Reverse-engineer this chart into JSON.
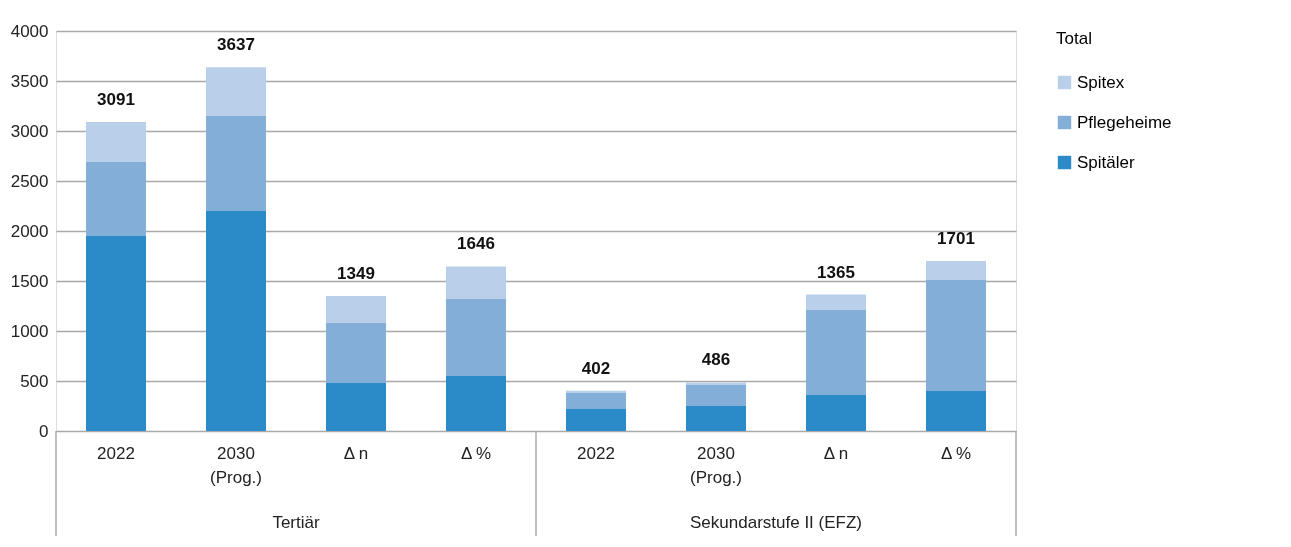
{
  "chart_data": {
    "type": "bar",
    "stacked": true,
    "categories": [
      "2022",
      "2030\n(Prog.)",
      "Δ n",
      "Δ %",
      "2022",
      "2030\n(Prog.)",
      "Δ n",
      "Δ %"
    ],
    "series": [
      {
        "name": "Spitäler",
        "color": "#2b8bc8",
        "values": [
          1950,
          2200,
          480,
          550,
          220,
          250,
          360,
          400
        ]
      },
      {
        "name": "Pflegeheime",
        "color": "#83aed8",
        "values": [
          740,
          950,
          600,
          770,
          160,
          210,
          850,
          1110
        ]
      },
      {
        "name": "Spitex",
        "color": "#b9cfea",
        "values": [
          401,
          487,
          269,
          326,
          22,
          26,
          155,
          191
        ]
      }
    ],
    "totals": [
      "3091",
      "3637",
      "1349",
      "1646",
      "402",
      "486",
      "1365",
      "1701"
    ],
    "legend_title": "Total",
    "annotations": [
      "Tertiär",
      "Sekundarstufe II (EFZ)"
    ],
    "ylim": [
      0,
      4000
    ],
    "yticks": [
      0,
      500,
      1000,
      1500,
      2000,
      2500,
      3000,
      3500,
      4000
    ],
    "grid": "y",
    "legend": "right"
  }
}
